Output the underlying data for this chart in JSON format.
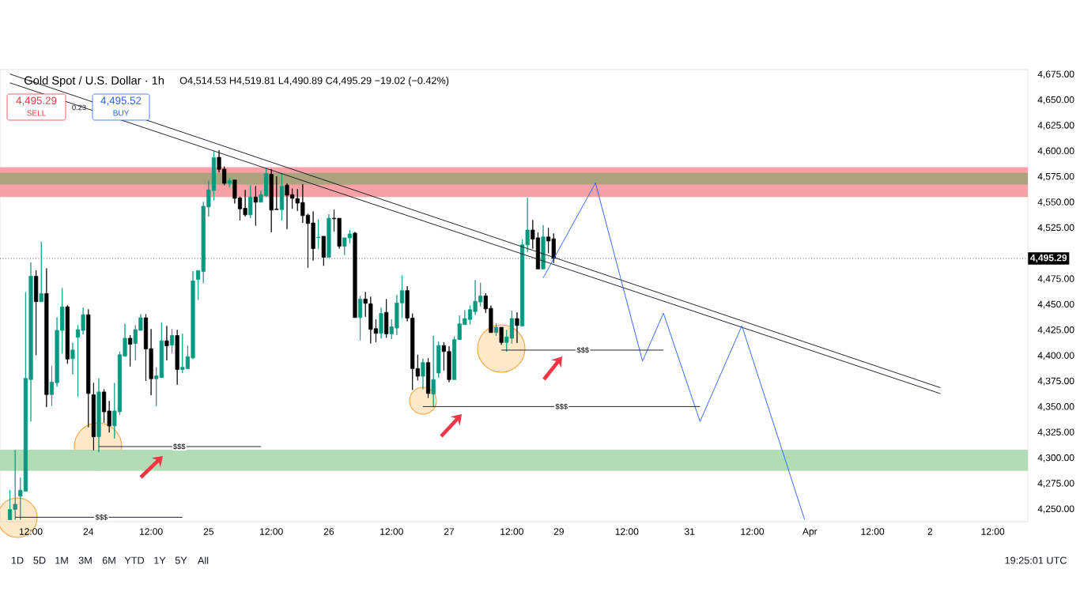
{
  "chart_data": {
    "type": "candlestick",
    "title": "Gold Spot / U.S. Dollar · 1h",
    "subtitle": "O4,514.53 H4,519.81 L4,490.89 C4,495.29 −19.02 (−0.42%)",
    "categories": [
      null,
      null,
      null,
      null,
      "12:00",
      null,
      null,
      null,
      null,
      null,
      null,
      null,
      null,
      null,
      null,
      "24",
      null,
      null,
      null,
      null,
      null,
      null,
      null,
      null,
      null,
      null,
      null,
      "12:00",
      null,
      null,
      null,
      null,
      null,
      null,
      null,
      null,
      null,
      null,
      "25",
      null,
      null,
      null,
      null,
      null,
      null,
      null,
      null,
      null,
      null,
      null,
      "12:00",
      null,
      null,
      null,
      null,
      null,
      null,
      null,
      null,
      null,
      null,
      "26",
      null,
      null,
      null,
      null,
      null,
      null,
      null,
      null,
      null,
      null,
      null,
      "12:00",
      null,
      null,
      null,
      null,
      null,
      null,
      null,
      null,
      null,
      null,
      "27",
      null,
      null,
      null,
      null,
      null,
      null,
      null,
      null,
      null,
      null,
      null,
      "12:00",
      null,
      null,
      null,
      null,
      null,
      null,
      null,
      null,
      "29",
      null,
      null,
      null,
      null,
      null,
      null,
      null,
      null,
      null,
      null,
      null,
      null,
      "12:00",
      null,
      null,
      null,
      null,
      null,
      null,
      null,
      null,
      null,
      null,
      null,
      "31",
      null,
      null,
      null,
      null,
      null,
      null,
      null,
      null,
      null,
      null,
      null,
      "12:00",
      null,
      null,
      null,
      null,
      null,
      null,
      null,
      null,
      null,
      null,
      "Apr",
      null,
      null,
      null,
      null,
      null,
      null,
      null,
      null,
      null,
      null,
      null,
      "12:00",
      null,
      null,
      null,
      null,
      null,
      null,
      null,
      null,
      null,
      null,
      "2",
      null,
      null,
      null,
      null,
      null,
      null,
      null,
      null,
      null,
      null,
      null,
      "12:00",
      null,
      null,
      null,
      null,
      null,
      null
    ],
    "ohlc": [
      [
        4240,
        4268.7,
        4240,
        4249.8
      ],
      [
        4250,
        4307.8,
        4240,
        4255
      ],
      [
        4262.9,
        4281,
        4240,
        4268.7
      ],
      [
        4267.7,
        4462.5,
        4267.7,
        4378.1
      ],
      [
        4376.9,
        4491.4,
        4336,
        4477.9
      ],
      [
        4477.9,
        4483.8,
        4400.7,
        4453.1
      ],
      [
        4453.1,
        4511.7,
        4453.1,
        4461
      ],
      [
        4461,
        4485.6,
        4350.1,
        4362.3
      ],
      [
        4362.3,
        4390.2,
        4351.3,
        4374.4
      ],
      [
        4373.8,
        4437.8,
        4370,
        4425
      ],
      [
        4425,
        4466.4,
        4402.5,
        4448
      ],
      [
        4448,
        4449.5,
        4392.3,
        4396.9
      ],
      [
        4397.3,
        4412.7,
        4382,
        4405.8
      ],
      [
        4418.3,
        4430.1,
        4360.2,
        4425.7
      ],
      [
        4425,
        4447.2,
        4421.1,
        4440.3
      ],
      [
        4440.3,
        4445.6,
        4330.3,
        4363.3
      ],
      [
        4362,
        4373.6,
        4307.8,
        4321.1
      ],
      [
        4321.1,
        4378.1,
        4305.8,
        4364.8
      ],
      [
        4364.8,
        4367.4,
        4334.6,
        4345.4
      ],
      [
        4346.2,
        4356,
        4325.2,
        4331.6
      ],
      [
        4331.6,
        4373.6,
        4319.4,
        4346.2
      ],
      [
        4345.4,
        4404.3,
        4342.4,
        4401.2
      ],
      [
        4399.9,
        4431.4,
        4399.9,
        4417.3
      ],
      [
        4417.3,
        4420.4,
        4389.7,
        4411.4
      ],
      [
        4412.2,
        4430.1,
        4395.6,
        4425.7
      ],
      [
        4425,
        4440.8,
        4425,
        4437.3
      ],
      [
        4437.3,
        4440.8,
        4375.6,
        4406.8
      ],
      [
        4407.1,
        4426.3,
        4361.6,
        4377.7
      ],
      [
        4377.7,
        4388.9,
        4350.8,
        4380.5
      ],
      [
        4378.9,
        4432.7,
        4378.9,
        4414.8
      ],
      [
        4414.8,
        4429.3,
        4395.6,
        4409.9
      ],
      [
        4410.6,
        4426.3,
        4402.5,
        4419.9
      ],
      [
        4419.9,
        4425.5,
        4371.8,
        4386.8
      ],
      [
        4386.8,
        4421.7,
        4383.3,
        4388.9
      ],
      [
        4387.6,
        4410.2,
        4387.6,
        4399.4
      ],
      [
        4398.1,
        4483,
        4396.9,
        4473.3
      ],
      [
        4474.8,
        4483.5,
        4454.8,
        4483.5
      ],
      [
        4482.5,
        4550.7,
        4471,
        4546.4
      ],
      [
        4545.7,
        4571.3,
        4536.2,
        4562.3
      ],
      [
        4561.7,
        4600.1,
        4552,
        4593.8
      ],
      [
        4594.2,
        4601.1,
        4579.4,
        4582.4
      ],
      [
        4582.7,
        4585.3,
        4566.9,
        4568.7
      ],
      [
        4568.7,
        4573.8,
        4564.9,
        4571.3
      ],
      [
        4572,
        4572,
        4549,
        4554.1
      ],
      [
        4554.6,
        4555.8,
        4532.6,
        4543.8
      ],
      [
        4544.4,
        4562.3,
        4536.2,
        4538
      ],
      [
        4538,
        4566.9,
        4534.7,
        4555.4
      ],
      [
        4555.4,
        4566.1,
        4527.3,
        4550.3
      ],
      [
        4550.3,
        4561.7,
        4550.3,
        4557.7
      ],
      [
        4556.7,
        4584,
        4555.4,
        4578.4
      ],
      [
        4577.6,
        4582.7,
        4520.9,
        4542.6
      ],
      [
        4543.6,
        4575.6,
        4543.1,
        4543.1
      ],
      [
        4543.1,
        4578.1,
        4532.6,
        4566.1
      ],
      [
        4566.9,
        4568.7,
        4524,
        4557.2
      ],
      [
        4557.7,
        4563.6,
        4543.9,
        4554.1
      ],
      [
        4553.8,
        4563.1,
        4541.8,
        4549.5
      ],
      [
        4550,
        4567.9,
        4530,
        4537.2
      ],
      [
        4537.7,
        4539.2,
        4486.3,
        4529.5
      ],
      [
        4530,
        4541.3,
        4493.2,
        4505
      ],
      [
        4515.7,
        4533.6,
        4504.7,
        4516.2
      ],
      [
        4517,
        4517,
        4488.1,
        4496.5
      ],
      [
        4496.5,
        4538.5,
        4496.5,
        4534.6
      ],
      [
        4534.6,
        4543.1,
        4521.8,
        4534.1
      ],
      [
        4534.6,
        4534.6,
        4505,
        4507.3
      ],
      [
        4507.3,
        4515.5,
        4498.8,
        4515.5
      ],
      [
        4515.5,
        4523.1,
        4510.3,
        4519.3
      ],
      [
        4520.1,
        4521.3,
        4437.5,
        4437.5
      ],
      [
        4437.5,
        4458.7,
        4415.2,
        4455.6
      ],
      [
        4455.6,
        4462.5,
        4438.2,
        4451.5
      ],
      [
        4451,
        4457.9,
        4412.2,
        4426
      ],
      [
        4426.7,
        4435.7,
        4413.4,
        4422.1
      ],
      [
        4422.1,
        4447.2,
        4417,
        4441.5
      ],
      [
        4442.6,
        4455.6,
        4417.8,
        4421.6
      ],
      [
        4421.6,
        4435.7,
        4416.5,
        4428.5
      ],
      [
        4427.3,
        4459.5,
        4420.3,
        4451.8
      ],
      [
        4451.8,
        4478.6,
        4437,
        4463.9
      ],
      [
        4463.9,
        4468.2,
        4433.9,
        4437
      ],
      [
        4437,
        4441.5,
        4366.7,
        4387.7
      ],
      [
        4387.7,
        4401.2,
        4376.1,
        4380.2
      ],
      [
        4380.2,
        4397.4,
        4367.4,
        4393.5
      ],
      [
        4393.5,
        4397.9,
        4359,
        4363.3
      ],
      [
        4362.8,
        4419.6,
        4350.1,
        4376.9
      ],
      [
        4383.3,
        4414,
        4378.9,
        4410.2
      ],
      [
        4410.2,
        4413.5,
        4385.9,
        4404.3
      ],
      [
        4404.3,
        4409.4,
        4374.4,
        4376.9
      ],
      [
        4376.9,
        4419.1,
        4376.9,
        4416
      ],
      [
        4416,
        4439.6,
        4416,
        4431.4
      ],
      [
        4430.6,
        4444.7,
        4430.6,
        4436.5
      ],
      [
        4435.7,
        4449.3,
        4430.6,
        4445.2
      ],
      [
        4443.4,
        4474.1,
        4440.1,
        4453.4
      ],
      [
        4452.8,
        4471.5,
        4448.5,
        4458.7
      ],
      [
        4458.7,
        4461.3,
        4442.1,
        4446
      ],
      [
        4446.5,
        4449.3,
        4422.9,
        4422.9
      ],
      [
        4422.9,
        4431.9,
        4419.6,
        4428
      ],
      [
        4428,
        4428,
        4410.9,
        4413.2
      ],
      [
        4413.2,
        4425.5,
        4404.3,
        4418.6
      ],
      [
        4417.3,
        4444.2,
        4412.2,
        4436.5
      ],
      [
        4436.5,
        4442.6,
        4412.7,
        4429.8
      ],
      [
        4429.3,
        4513.7,
        4429.3,
        4508.6
      ],
      [
        4508.6,
        4554.6,
        4501.7,
        4523.1
      ],
      [
        4523.1,
        4532.9,
        4504.8,
        4514.2
      ],
      [
        4515.5,
        4520.9,
        4485,
        4485
      ],
      [
        4485.1,
        4527.8,
        4485.1,
        4516.3
      ],
      [
        4516.3,
        4525.2,
        4500.4,
        4512.4
      ],
      [
        4514.53,
        4519.81,
        4490.89,
        4495.29
      ],
      null,
      null,
      null,
      null,
      null,
      null,
      null,
      null,
      null,
      null,
      null,
      null,
      null,
      null,
      null,
      null,
      null,
      null,
      null,
      null,
      null,
      null,
      null,
      null,
      null,
      null,
      null,
      null,
      null,
      null,
      null,
      null,
      null,
      null,
      null,
      null,
      null,
      null,
      null,
      null,
      null,
      null,
      null,
      null,
      null,
      null,
      null,
      null,
      null,
      null,
      null,
      null,
      null,
      null,
      null,
      null,
      null,
      null,
      null,
      null,
      null,
      null,
      null,
      null,
      null,
      null,
      null,
      null,
      null,
      null,
      null,
      null,
      null,
      null,
      null,
      null,
      null,
      null,
      null,
      null,
      null,
      null,
      null,
      null,
      null,
      null,
      null,
      null,
      null,
      null
    ],
    "colors": [
      "#089981",
      "#089981",
      "#089981",
      "#089981",
      "#089981",
      "#000000",
      "#089981",
      "#000000",
      "#089981",
      "#089981",
      "#089981",
      "#000000",
      "#089981",
      "#089981",
      "#089981",
      "#000000",
      "#000000",
      "#089981",
      "#000000",
      "#000000",
      "#089981",
      "#089981",
      "#089981",
      "#000000",
      "#089981",
      "#089981",
      "#000000",
      "#000000",
      "#089981",
      "#089981",
      "#000000",
      "#089981",
      "#000000",
      "#089981",
      "#089981",
      "#089981",
      "#089981",
      "#089981",
      "#089981",
      "#089981",
      "#000000",
      "#000000",
      "#089981",
      "#000000",
      "#000000",
      "#000000",
      "#089981",
      "#000000",
      "#089981",
      "#089981",
      "#000000",
      "#000000",
      "#089981",
      "#000000",
      "#000000",
      "#000000",
      "#000000",
      "#000000",
      "#000000",
      "#089981",
      "#000000",
      "#089981",
      "#000000",
      "#000000",
      "#089981",
      "#089981",
      "#000000",
      "#089981",
      "#000000",
      "#000000",
      "#000000",
      "#089981",
      "#000000",
      "#089981",
      "#089981",
      "#089981",
      "#000000",
      "#000000",
      "#000000",
      "#089981",
      "#000000",
      "#089981",
      "#089981",
      "#000000",
      "#000000",
      "#089981",
      "#089981",
      "#089981",
      "#089981",
      "#089981",
      "#089981",
      "#000000",
      "#000000",
      "#089981",
      "#000000",
      "#089981",
      "#089981",
      "#000000",
      "#089981",
      "#089981",
      "#000000",
      "#000000",
      "#089981",
      "#000000",
      "#000000",
      null,
      null,
      null,
      null,
      null,
      null,
      null,
      null,
      null,
      null,
      null,
      null,
      null,
      null,
      null,
      null,
      null,
      null,
      null,
      null,
      null,
      null,
      null,
      null,
      null,
      null,
      null,
      null,
      null,
      null,
      null,
      null,
      null,
      null,
      null,
      null,
      null,
      null,
      null,
      null,
      null,
      null,
      null,
      null,
      null,
      null,
      null,
      null,
      null,
      null,
      null,
      null,
      null,
      null,
      null,
      null,
      null,
      null,
      null,
      null,
      null,
      null,
      null,
      null,
      null,
      null,
      null,
      null,
      null,
      null,
      null,
      null,
      null,
      null,
      null,
      null,
      null,
      null,
      null,
      null,
      null,
      null,
      null,
      null,
      null,
      null,
      null,
      null,
      null,
      null
    ],
    "series": [
      {
        "type": "line",
        "color": "#131722",
        "values": [
          4675.6,
          null,
          null,
          null,
          null,
          null,
          null,
          null,
          null,
          null,
          null,
          null,
          null,
          null,
          null,
          null,
          null,
          null,
          null,
          null,
          null,
          null,
          null,
          null,
          null,
          null,
          null,
          null,
          null,
          null,
          null,
          null,
          null,
          null,
          null,
          null,
          null,
          null,
          null,
          null,
          null,
          null,
          null,
          null,
          null,
          null,
          null,
          null,
          null,
          null,
          null,
          null,
          null,
          null,
          null,
          null,
          null,
          null,
          null,
          null,
          null,
          null,
          null,
          null,
          null,
          null,
          null,
          null,
          null,
          null,
          null,
          null,
          null,
          null,
          null,
          null,
          null,
          null,
          null,
          null,
          null,
          null,
          null,
          null,
          null,
          null,
          null,
          null,
          null,
          null,
          null,
          null,
          null,
          null,
          null,
          null,
          null,
          null,
          null,
          null,
          null,
          null,
          null,
          null,
          null,
          null,
          null,
          null,
          null,
          null,
          null,
          null,
          null,
          null,
          null,
          null,
          null,
          null,
          null,
          null,
          null,
          null,
          null,
          null,
          null,
          null,
          null,
          null,
          null,
          null,
          null,
          null,
          null,
          null,
          null,
          null,
          null,
          null,
          null,
          null,
          null,
          null,
          null,
          null,
          null,
          null,
          null,
          null,
          null,
          null,
          null,
          null,
          null,
          null,
          null,
          null,
          null,
          null,
          null,
          null,
          null,
          null,
          null,
          null,
          null,
          null,
          null,
          null,
          null,
          null,
          null,
          null,
          null,
          null,
          null,
          null,
          null,
          null,
          4368.9,
          null,
          null,
          null,
          null,
          null,
          null,
          null,
          null,
          null,
          null,
          null,
          null,
          null,
          null,
          null,
          null
        ]
      },
      {
        "type": "line",
        "color": "#131722",
        "values": [
          4667.0,
          null,
          null,
          null,
          null,
          null,
          null,
          null,
          null,
          null,
          null,
          null,
          null,
          null,
          null,
          null,
          null,
          null,
          null,
          null,
          null,
          null,
          null,
          null,
          null,
          null,
          null,
          null,
          null,
          null,
          null,
          null,
          null,
          null,
          null,
          null,
          null,
          null,
          null,
          null,
          null,
          null,
          null,
          null,
          null,
          null,
          null,
          null,
          null,
          null,
          null,
          null,
          null,
          null,
          null,
          null,
          null,
          null,
          null,
          null,
          null,
          null,
          null,
          null,
          null,
          null,
          null,
          null,
          null,
          null,
          null,
          null,
          null,
          null,
          null,
          null,
          null,
          null,
          null,
          null,
          null,
          null,
          null,
          null,
          null,
          null,
          null,
          null,
          null,
          null,
          null,
          null,
          null,
          null,
          null,
          null,
          null,
          null,
          null,
          null,
          null,
          null,
          null,
          null,
          null,
          null,
          null,
          null,
          null,
          null,
          null,
          null,
          null,
          null,
          null,
          null,
          null,
          null,
          null,
          null,
          null,
          null,
          null,
          null,
          null,
          null,
          null,
          null,
          null,
          null,
          null,
          null,
          null,
          null,
          null,
          null,
          null,
          null,
          null,
          null,
          null,
          null,
          null,
          null,
          null,
          null,
          null,
          null,
          null,
          null,
          null,
          null,
          null,
          null,
          null,
          null,
          null,
          null,
          null,
          null,
          null,
          null,
          null,
          null,
          null,
          null,
          null,
          null,
          null,
          null,
          null,
          null,
          null,
          null,
          null,
          null,
          null,
          null,
          4363.1,
          null,
          null,
          null,
          null,
          null,
          null,
          null,
          null,
          null,
          null,
          null,
          null,
          null,
          null,
          null,
          null
        ]
      },
      {
        "type": "line",
        "color": "#2962ff",
        "values": [
          null,
          null,
          null,
          null,
          null,
          null,
          null,
          null,
          null,
          null,
          null,
          null,
          null,
          null,
          null,
          null,
          null,
          null,
          null,
          null,
          null,
          null,
          null,
          null,
          null,
          null,
          null,
          null,
          null,
          null,
          null,
          null,
          null,
          null,
          null,
          null,
          null,
          null,
          null,
          null,
          null,
          null,
          null,
          null,
          null,
          null,
          null,
          null,
          null,
          null,
          null,
          null,
          null,
          null,
          null,
          null,
          null,
          null,
          null,
          null,
          null,
          null,
          null,
          null,
          null,
          null,
          null,
          null,
          null,
          null,
          null,
          null,
          null,
          null,
          null,
          null,
          null,
          null,
          null,
          null,
          null,
          null,
          null,
          null,
          null,
          null,
          null,
          null,
          null,
          null,
          null,
          null,
          null,
          null,
          null,
          null,
          null,
          null,
          null,
          null,
          null,
          null,
          4476.3,
          null,
          null,
          null,
          null,
          null,
          null,
          null,
          null,
          null,
          4569.1,
          null,
          null,
          null,
          null,
          null,
          null,
          null,
          null,
          4395.0,
          null,
          null,
          null,
          4441.8,
          null,
          null,
          null,
          null,
          null,
          null,
          4335.9,
          null,
          null,
          null,
          null,
          null,
          null,
          null,
          4429.5,
          null,
          null,
          null,
          null,
          null,
          null,
          null,
          null,
          null,
          null,
          null,
          4240.0,
          null,
          null,
          null,
          null,
          null,
          null,
          null,
          null,
          null,
          null,
          null,
          null,
          null,
          null,
          null,
          null,
          null,
          null,
          null,
          null,
          null,
          null,
          null,
          null,
          null,
          null,
          null,
          null,
          null,
          null,
          null,
          null,
          null,
          null,
          null,
          null,
          null,
          null,
          null,
          null,
          null,
          null
        ]
      },
      {
        "type": "line",
        "color": "#131722",
        "values": [
          null,
          null,
          null,
          null,
          null,
          null,
          null,
          null,
          null,
          null,
          null,
          null,
          null,
          null,
          null,
          null,
          null,
          4311.4,
          null,
          null,
          null,
          null,
          null,
          null,
          null,
          null,
          null,
          null,
          null,
          null,
          null,
          null,
          null,
          null,
          null,
          null,
          null,
          null,
          null,
          null,
          null,
          null,
          null,
          null,
          null,
          null,
          null,
          null,
          4311.4,
          null,
          null,
          null,
          null,
          null,
          null,
          null,
          null,
          null,
          null,
          null,
          null,
          null,
          null,
          null,
          null,
          null,
          null,
          null,
          null,
          null,
          null,
          null,
          null,
          null,
          null,
          null,
          null,
          null,
          null,
          null,
          null,
          null,
          null,
          null,
          null,
          null,
          null,
          null,
          null,
          null,
          null,
          null,
          null,
          null,
          null,
          null,
          null,
          null,
          null,
          null,
          null,
          null,
          null,
          null,
          null,
          null,
          null,
          null,
          null,
          null,
          null,
          null,
          null,
          null,
          null,
          null,
          null,
          null,
          null,
          null,
          null,
          null,
          null,
          null,
          null,
          null,
          null,
          null,
          null,
          null,
          null,
          null,
          null,
          null,
          null,
          null,
          null,
          null,
          null,
          null,
          null,
          null,
          null,
          null,
          null,
          null,
          null,
          null,
          null,
          null,
          null,
          null,
          null,
          null,
          null,
          null,
          null,
          null,
          null,
          null,
          null,
          null,
          null,
          null,
          null,
          null,
          null,
          null,
          null,
          null,
          null,
          null,
          null,
          null,
          null,
          null,
          null,
          null,
          null,
          null,
          null,
          null,
          null,
          null,
          null,
          null,
          null,
          null,
          null,
          null,
          null,
          null,
          null,
          null,
          null
        ]
      },
      {
        "type": "line",
        "color": "#131722",
        "values": [
          null,
          null,
          null,
          null,
          null,
          null,
          null,
          null,
          null,
          null,
          null,
          null,
          null,
          null,
          null,
          null,
          null,
          null,
          null,
          null,
          null,
          null,
          null,
          null,
          null,
          null,
          null,
          null,
          null,
          null,
          null,
          null,
          null,
          null,
          null,
          null,
          null,
          null,
          null,
          null,
          null,
          null,
          null,
          null,
          null,
          null,
          null,
          null,
          null,
          null,
          null,
          null,
          null,
          null,
          null,
          null,
          null,
          null,
          null,
          null,
          null,
          null,
          null,
          null,
          null,
          null,
          null,
          null,
          null,
          null,
          null,
          null,
          null,
          null,
          null,
          null,
          null,
          null,
          null,
          4350.5,
          null,
          null,
          null,
          null,
          null,
          null,
          null,
          null,
          null,
          null,
          null,
          null,
          null,
          null,
          null,
          null,
          null,
          null,
          null,
          null,
          null,
          null,
          null,
          null,
          null,
          null,
          null,
          null,
          null,
          null,
          null,
          null,
          null,
          null,
          null,
          null,
          null,
          null,
          null,
          null,
          null,
          null,
          null,
          null,
          null,
          null,
          null,
          null,
          null,
          null,
          null,
          null,
          4350.5,
          null,
          null,
          null,
          null,
          null,
          null,
          null,
          null,
          null,
          null,
          null,
          null,
          null,
          null,
          null,
          null,
          null,
          null,
          null,
          null,
          null,
          null,
          null,
          null,
          null,
          null,
          null,
          null,
          null,
          null,
          null,
          null,
          null,
          null,
          null,
          null,
          null,
          null,
          null,
          null,
          null,
          null,
          null,
          null,
          null,
          null,
          null,
          null,
          null,
          null,
          null,
          null,
          null,
          null,
          null,
          null,
          null,
          null,
          null,
          null,
          null,
          null
        ]
      },
      {
        "type": "line",
        "color": "#131722",
        "values": [
          null,
          null,
          null,
          null,
          null,
          null,
          null,
          null,
          null,
          null,
          null,
          null,
          null,
          null,
          null,
          null,
          null,
          null,
          null,
          null,
          null,
          null,
          null,
          null,
          null,
          null,
          null,
          null,
          null,
          null,
          null,
          null,
          null,
          null,
          null,
          null,
          null,
          null,
          null,
          null,
          null,
          null,
          null,
          null,
          null,
          null,
          null,
          null,
          null,
          null,
          null,
          null,
          null,
          null,
          null,
          null,
          null,
          null,
          null,
          null,
          null,
          null,
          null,
          null,
          null,
          null,
          null,
          null,
          null,
          null,
          null,
          null,
          null,
          null,
          null,
          null,
          null,
          null,
          null,
          null,
          null,
          null,
          null,
          null,
          null,
          null,
          null,
          null,
          null,
          null,
          null,
          null,
          null,
          null,
          4405.7,
          null,
          null,
          null,
          null,
          null,
          null,
          null,
          null,
          null,
          null,
          null,
          null,
          null,
          null,
          null,
          null,
          null,
          null,
          null,
          null,
          null,
          null,
          null,
          null,
          null,
          null,
          null,
          null,
          null,
          null,
          4405.7,
          null,
          null,
          null,
          null,
          null,
          null,
          null,
          null,
          null,
          null,
          null,
          null,
          null,
          null,
          null,
          null,
          null,
          null,
          null,
          null,
          null,
          null,
          null,
          null,
          null,
          null,
          null,
          null,
          null,
          null,
          null,
          null,
          null,
          null,
          null,
          null,
          null,
          null,
          null,
          null,
          null,
          null,
          null,
          null,
          null,
          null,
          null,
          null,
          null,
          null,
          null,
          null,
          null,
          null,
          null,
          null,
          null,
          null,
          null,
          null,
          null,
          null,
          null,
          null,
          null,
          null,
          null,
          null,
          null
        ]
      },
      {
        "type": "line",
        "color": "#131722",
        "values": [
          null,
          4242.3,
          null,
          null,
          null,
          null,
          null,
          null,
          null,
          null,
          null,
          null,
          null,
          null,
          null,
          null,
          null,
          null,
          null,
          null,
          null,
          null,
          null,
          null,
          null,
          null,
          null,
          null,
          null,
          null,
          null,
          null,
          null,
          4242.3,
          null,
          null,
          null,
          null,
          null,
          null,
          null,
          null,
          null,
          null,
          null,
          null,
          null,
          null,
          null,
          null,
          null,
          null,
          null,
          null,
          null,
          null,
          null,
          null,
          null,
          null,
          null,
          null,
          null,
          null,
          null,
          null,
          null,
          null,
          null,
          null,
          null,
          null,
          null,
          null,
          null,
          null,
          null,
          null,
          null,
          null,
          null,
          null,
          null,
          null,
          null,
          null,
          null,
          null,
          null,
          null,
          null,
          null,
          null,
          null,
          null,
          null,
          null,
          null,
          null,
          null,
          null,
          null,
          null,
          null,
          null,
          null,
          null,
          null,
          null,
          null,
          null,
          null,
          null,
          null,
          null,
          null,
          null,
          null,
          null,
          null,
          null,
          null,
          null,
          null,
          null,
          null,
          null,
          null,
          null,
          null,
          null,
          null,
          null,
          null,
          null,
          null,
          null,
          null,
          null,
          null,
          null,
          null,
          null,
          null,
          null,
          null,
          null,
          null,
          null,
          null,
          null,
          null,
          null,
          null,
          null,
          null,
          null,
          null,
          null,
          null,
          null,
          null,
          null,
          null,
          null,
          null,
          null,
          null,
          null,
          null,
          null,
          null,
          null,
          null,
          null,
          null,
          null,
          null,
          null,
          null,
          null,
          null,
          null,
          null,
          null,
          null,
          null,
          null,
          null,
          null,
          null,
          null,
          null,
          null,
          null
        ]
      }
    ],
    "ylim": [
      4238,
      4680
    ],
    "yticks": [
      {
        "value": 4250,
        "label": "4,250.00"
      },
      {
        "value": 4275,
        "label": "4,275.00"
      },
      {
        "value": 4300,
        "label": "4,300.00"
      },
      {
        "value": 4325,
        "label": "4,325.00"
      },
      {
        "value": 4350,
        "label": "4,350.00"
      },
      {
        "value": 4375,
        "label": "4,375.00"
      },
      {
        "value": 4400,
        "label": "4,400.00"
      },
      {
        "value": 4425,
        "label": "4,425.00"
      },
      {
        "value": 4450,
        "label": "4,450.00"
      },
      {
        "value": 4475,
        "label": "4,475.00"
      },
      {
        "value": 4525,
        "label": "4,525.00"
      },
      {
        "value": 4550,
        "label": "4,550.00"
      },
      {
        "value": 4575,
        "label": "4,575.00"
      },
      {
        "value": 4600,
        "label": "4,600.00"
      },
      {
        "value": 4625,
        "label": "4,625.00"
      },
      {
        "value": 4650,
        "label": "4,650.00"
      },
      {
        "value": 4675,
        "label": "4,675.00"
      }
    ],
    "bands": [
      {
        "axis": "y",
        "from": 4555.3,
        "to": 4584.5,
        "color": "#f7a1a6"
      },
      {
        "axis": "y",
        "from": 4567.6,
        "to": 4579.0,
        "color": "#aba27e"
      },
      {
        "axis": "y",
        "from": 4287.6,
        "to": 4308.3,
        "color": "#b2dcb5"
      }
    ],
    "ref_lines": [
      {
        "axis": "y",
        "value": 4495.29,
        "label": "4,495.29",
        "color": "#000000",
        "line_style": "dotted"
      }
    ],
    "annotations": [
      {
        "text": "$$$",
        "y": 4311.4
      },
      {
        "text": "$$$",
        "y": 4350.5
      },
      {
        "text": "$$$",
        "y": 4405.7
      },
      {
        "text": "$$$",
        "y": 4242.3
      },
      "4,495.29",
      "SELL",
      "0.23",
      "4,495.52",
      "BUY",
      "1D",
      "5D",
      "1M",
      "3M",
      "6M",
      "YTD",
      "1Y",
      "5Y",
      "All",
      "19:25:01 UTC"
    ]
  }
}
